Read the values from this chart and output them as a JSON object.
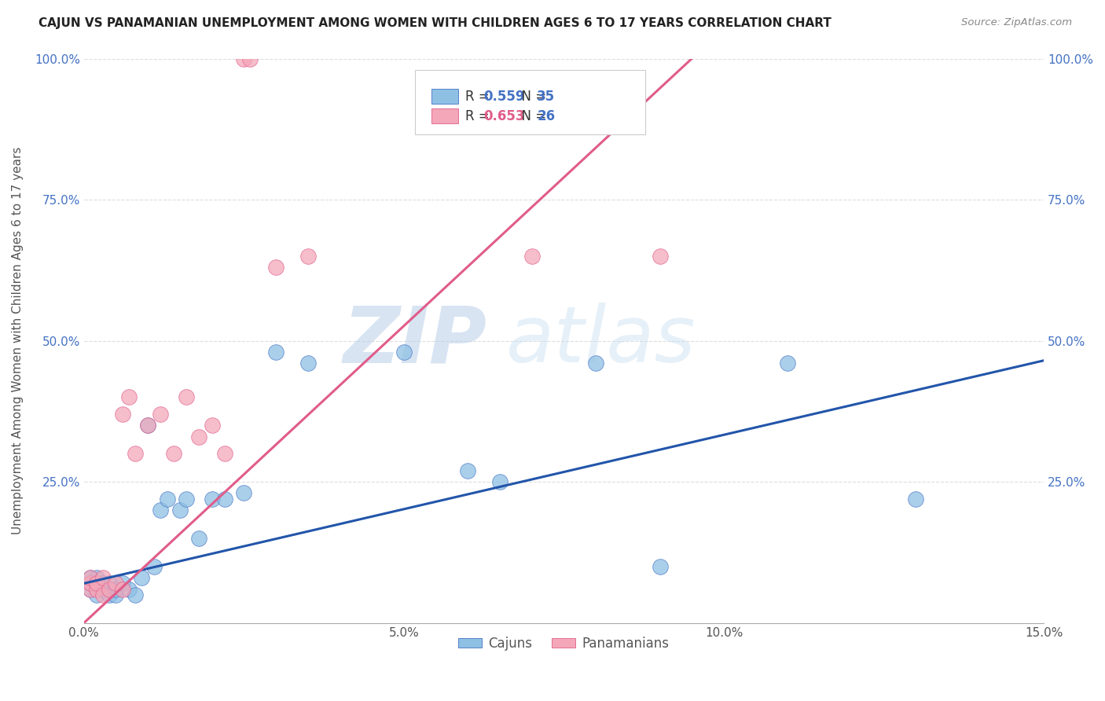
{
  "title": "CAJUN VS PANAMANIAN UNEMPLOYMENT AMONG WOMEN WITH CHILDREN AGES 6 TO 17 YEARS CORRELATION CHART",
  "source": "Source: ZipAtlas.com",
  "ylabel": "Unemployment Among Women with Children Ages 6 to 17 years",
  "xlim": [
    0.0,
    0.15
  ],
  "ylim": [
    0.0,
    1.0
  ],
  "xtick_positions": [
    0.0,
    0.025,
    0.05,
    0.075,
    0.1,
    0.125,
    0.15
  ],
  "xtick_labels": [
    "0.0%",
    "",
    "5.0%",
    "",
    "10.0%",
    "",
    "15.0%"
  ],
  "ytick_positions": [
    0.0,
    0.25,
    0.5,
    0.75,
    1.0
  ],
  "ytick_labels": [
    "",
    "25.0%",
    "50.0%",
    "75.0%",
    "100.0%"
  ],
  "cajun_color": "#8ec0e4",
  "panamanian_color": "#f4a7b9",
  "cajun_edge_color": "#4472C4",
  "panamanian_edge_color": "#e05c8a",
  "cajun_line_color": "#2255aa",
  "panamanian_line_color": "#e05c8a",
  "tick_color": "#4472C4",
  "cajun_R": 0.559,
  "cajun_N": 35,
  "panamanian_R": 0.653,
  "panamanian_N": 26,
  "watermark_zip": "ZIP",
  "watermark_atlas": "atlas",
  "background_color": "#ffffff",
  "grid_color": "#dddddd",
  "cajun_scatter_x": [
    0.001,
    0.001,
    0.001,
    0.002,
    0.002,
    0.002,
    0.003,
    0.003,
    0.004,
    0.004,
    0.005,
    0.005,
    0.006,
    0.007,
    0.008,
    0.009,
    0.01,
    0.011,
    0.012,
    0.013,
    0.015,
    0.016,
    0.018,
    0.02,
    0.022,
    0.025,
    0.03,
    0.035,
    0.05,
    0.06,
    0.065,
    0.08,
    0.09,
    0.11,
    0.13
  ],
  "cajun_scatter_y": [
    0.06,
    0.07,
    0.08,
    0.05,
    0.07,
    0.08,
    0.06,
    0.07,
    0.05,
    0.07,
    0.05,
    0.06,
    0.07,
    0.06,
    0.05,
    0.08,
    0.35,
    0.1,
    0.2,
    0.22,
    0.2,
    0.22,
    0.15,
    0.22,
    0.22,
    0.23,
    0.48,
    0.46,
    0.48,
    0.27,
    0.25,
    0.46,
    0.1,
    0.46,
    0.22
  ],
  "pana_scatter_x": [
    0.001,
    0.001,
    0.001,
    0.002,
    0.002,
    0.003,
    0.003,
    0.004,
    0.005,
    0.006,
    0.006,
    0.007,
    0.008,
    0.01,
    0.012,
    0.014,
    0.016,
    0.018,
    0.02,
    0.022,
    0.025,
    0.026,
    0.03,
    0.035,
    0.07,
    0.09
  ],
  "pana_scatter_y": [
    0.06,
    0.07,
    0.08,
    0.06,
    0.07,
    0.05,
    0.08,
    0.06,
    0.07,
    0.06,
    0.37,
    0.4,
    0.3,
    0.35,
    0.37,
    0.3,
    0.4,
    0.33,
    0.35,
    0.3,
    1.0,
    1.0,
    0.63,
    0.65,
    0.65,
    0.65
  ],
  "cajun_trend_x0": 0.0,
  "cajun_trend_x1": 0.15,
  "cajun_trend_y0": 0.07,
  "cajun_trend_y1": 0.465,
  "pana_trend_x0": 0.0,
  "pana_trend_x1": 0.095,
  "pana_trend_y0": 0.0,
  "pana_trend_y1": 1.0
}
